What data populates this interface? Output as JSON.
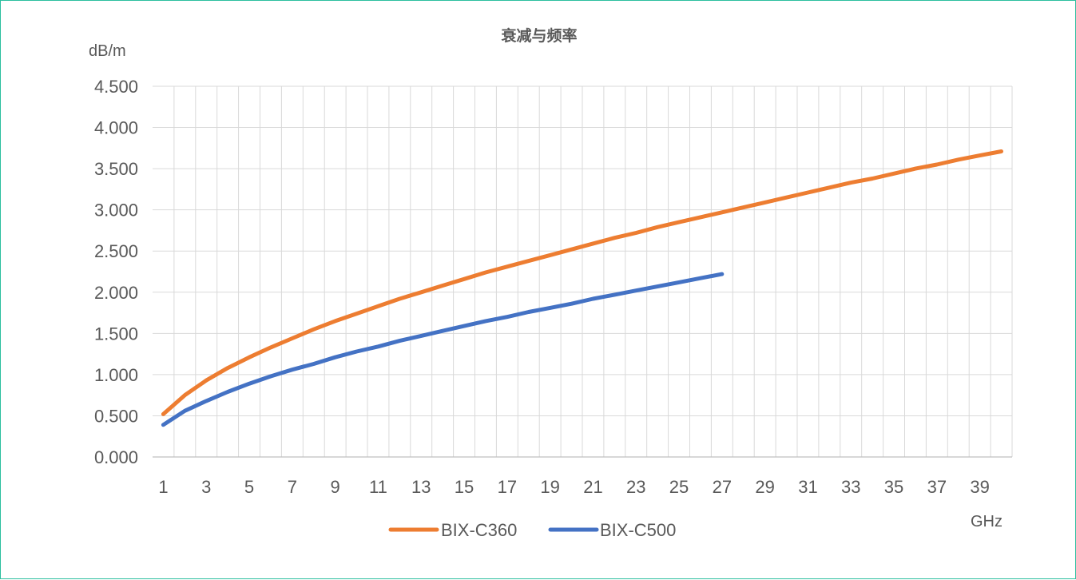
{
  "chart_data": {
    "type": "line",
    "title": "衰减与频率",
    "ylabel": "dB/m",
    "xlabel": "GHz",
    "xlim": [
      1,
      40
    ],
    "ylim": [
      0,
      4.5
    ],
    "y_ticks": [
      "0.000",
      "0.500",
      "1.000",
      "1.500",
      "2.000",
      "2.500",
      "3.000",
      "3.500",
      "4.000",
      "4.500"
    ],
    "x_ticks": [
      "1",
      "3",
      "5",
      "7",
      "9",
      "11",
      "13",
      "15",
      "17",
      "19",
      "21",
      "23",
      "25",
      "27",
      "29",
      "31",
      "33",
      "35",
      "37",
      "39"
    ],
    "grid": true,
    "legend_position": "bottom",
    "series": [
      {
        "name": "BIX-C360",
        "color": "#ed7d31",
        "x": [
          1,
          2,
          3,
          4,
          5,
          6,
          7,
          8,
          9,
          10,
          11,
          12,
          13,
          14,
          15,
          16,
          17,
          18,
          19,
          20,
          21,
          22,
          23,
          24,
          25,
          26,
          27,
          28,
          29,
          30,
          31,
          32,
          33,
          34,
          35,
          36,
          37,
          38,
          39,
          40
        ],
        "values": [
          0.52,
          0.75,
          0.93,
          1.08,
          1.21,
          1.33,
          1.44,
          1.55,
          1.65,
          1.74,
          1.83,
          1.92,
          2.0,
          2.08,
          2.16,
          2.24,
          2.31,
          2.38,
          2.45,
          2.52,
          2.59,
          2.66,
          2.72,
          2.79,
          2.85,
          2.91,
          2.97,
          3.03,
          3.09,
          3.15,
          3.21,
          3.27,
          3.33,
          3.38,
          3.44,
          3.5,
          3.55,
          3.61,
          3.66,
          3.71
        ]
      },
      {
        "name": "BIX-C500",
        "color": "#4472c4",
        "x": [
          1,
          2,
          3,
          4,
          5,
          6,
          7,
          8,
          9,
          10,
          11,
          12,
          13,
          14,
          15,
          16,
          17,
          18,
          19,
          20,
          21,
          22,
          23,
          24,
          25,
          26,
          27
        ],
        "values": [
          0.39,
          0.56,
          0.68,
          0.79,
          0.89,
          0.98,
          1.06,
          1.13,
          1.21,
          1.28,
          1.34,
          1.41,
          1.47,
          1.53,
          1.59,
          1.65,
          1.7,
          1.76,
          1.81,
          1.86,
          1.92,
          1.97,
          2.02,
          2.07,
          2.12,
          2.17,
          2.22
        ]
      }
    ]
  }
}
